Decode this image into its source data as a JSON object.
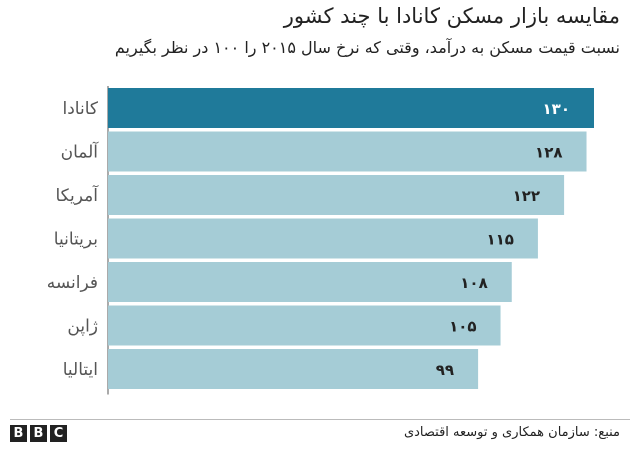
{
  "chart_data": {
    "type": "bar",
    "orientation": "horizontal",
    "title": "مقایسه بازار مسکن کانادا با چند کشور",
    "subtitle": "نسبت قیمت مسکن به درآمد، وقتی که نرخ سال ۲۰۱۵ را ۱۰۰ در نظر بگیریم",
    "categories": [
      "کانادا",
      "آلمان",
      "آمریکا",
      "بریتانیا",
      "فرانسه",
      "ژاپن",
      "ایتالیا"
    ],
    "values": [
      130,
      128,
      122,
      115,
      108,
      105,
      99
    ],
    "value_labels": [
      "۱۳۰",
      "۱۲۸",
      "۱۲۲",
      "۱۱۵",
      "۱۰۸",
      "۱۰۵",
      "۹۹"
    ],
    "highlight_index": 0,
    "xlim": [
      0,
      130
    ],
    "grid": false,
    "colors": {
      "highlight": "#1f7a9a",
      "bar": "#a5ccd6",
      "highlight_label": "#ffffff",
      "label": "#222222",
      "axis": "#555555"
    }
  },
  "footer": {
    "logo_letters": [
      "B",
      "B",
      "C"
    ],
    "source": "منبع: سازمان همکاری و توسعه اقتصادی"
  }
}
